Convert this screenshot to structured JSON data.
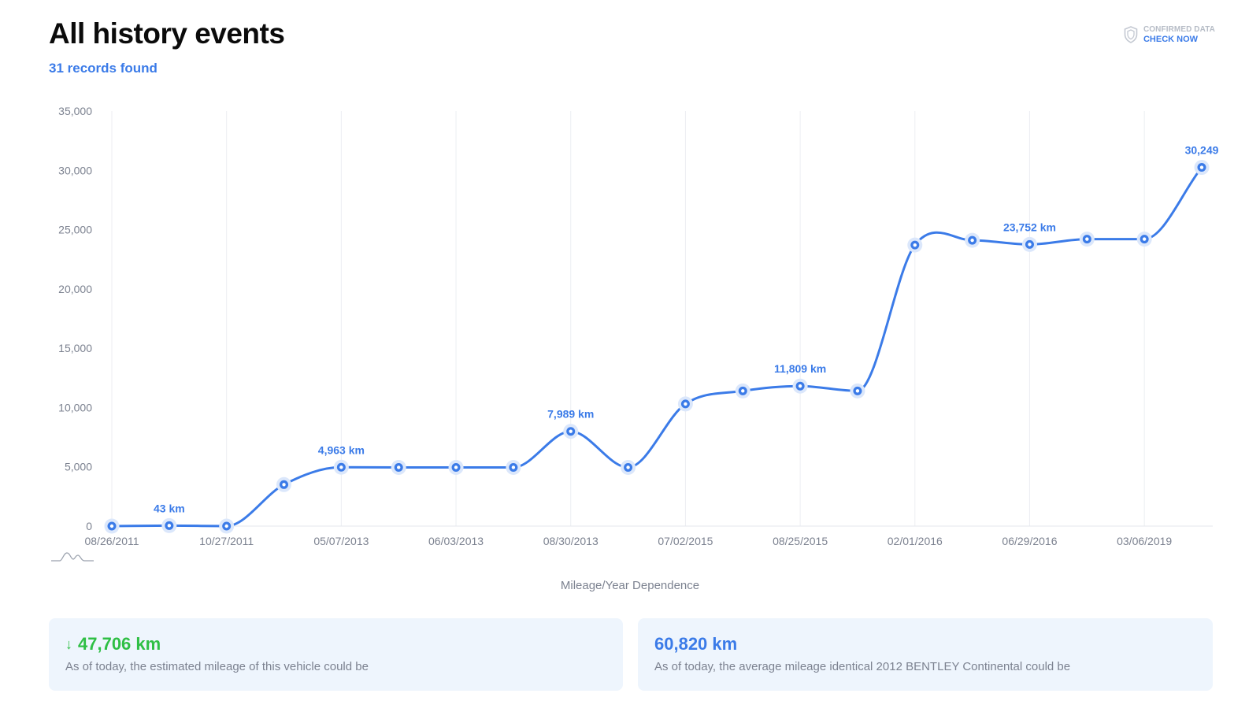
{
  "header": {
    "title": "All history events",
    "records": "31 records found",
    "badge_label": "CONFIRMED DATA",
    "badge_link": "CHECK NOW"
  },
  "chart_data": {
    "type": "line",
    "title": "",
    "xlabel": "Mileage/Year Dependence",
    "ylabel": "",
    "ylim": [
      0,
      35000
    ],
    "yticks": [
      0,
      5000,
      10000,
      15000,
      20000,
      25000,
      30000,
      35000
    ],
    "ytick_labels": [
      "0",
      "5,000",
      "10,000",
      "15,000",
      "20,000",
      "25,000",
      "30,000",
      "35,000"
    ],
    "xtick_labels": [
      "08/26/2011",
      "10/27/2011",
      "05/07/2013",
      "06/03/2013",
      "08/30/2013",
      "07/02/2015",
      "08/25/2015",
      "02/01/2016",
      "06/29/2016",
      "03/06/2019"
    ],
    "grid": "vertical",
    "series": [
      {
        "values": [
          0,
          43,
          0,
          3500,
          4963,
          4950,
          4950,
          4950,
          7989,
          4950,
          10300,
          11400,
          11809,
          11400,
          23700,
          24100,
          23752,
          24200,
          24200,
          30249
        ]
      }
    ],
    "point_labels": [
      {
        "index": 1,
        "text": "43 km"
      },
      {
        "index": 4,
        "text": "4,963 km"
      },
      {
        "index": 8,
        "text": "7,989 km"
      },
      {
        "index": 12,
        "text": "11,809 km"
      },
      {
        "index": 16,
        "text": "23,752 km"
      },
      {
        "index": 19,
        "text": "30,249"
      }
    ],
    "line_color": "#3b7be8"
  },
  "cards": {
    "estimated": {
      "value": "47,706 km",
      "description": "As of today, the estimated mileage of this vehicle could be"
    },
    "average": {
      "value": "60,820 km",
      "description": "As of today, the average mileage identical 2012 BENTLEY Continental could be"
    }
  }
}
